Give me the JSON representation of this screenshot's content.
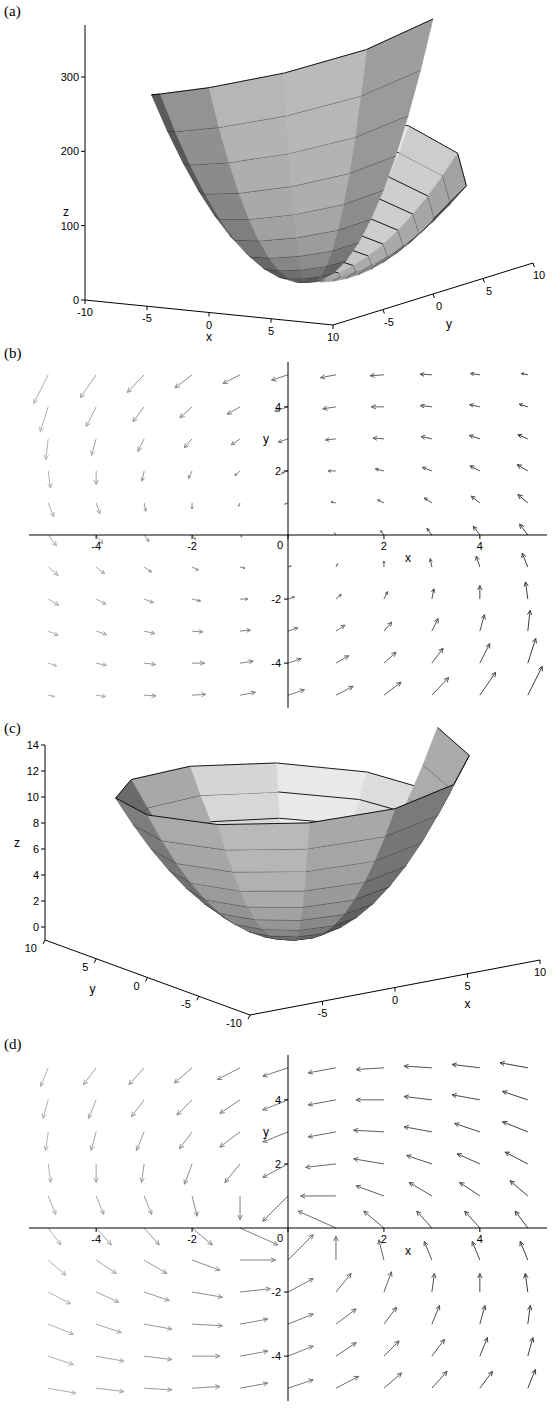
{
  "chart_data": [
    {
      "type": "surface",
      "title": "(a)",
      "x_label": "x",
      "y_label": "y",
      "z_label": "z",
      "xlim": [
        -10,
        10
      ],
      "ylim": [
        -10,
        10
      ],
      "zlim": [
        0,
        370
      ],
      "xticks": [
        -10,
        -5,
        0,
        5,
        10
      ],
      "yticks": [
        -5,
        0,
        5,
        10
      ],
      "zticks": [
        0,
        100,
        200,
        300
      ],
      "r": [
        0,
        1,
        2,
        3,
        4,
        5,
        6,
        7,
        8,
        9,
        10
      ],
      "theta": [
        0,
        30,
        60,
        90,
        120,
        150,
        180,
        210,
        240,
        270,
        300,
        330,
        360
      ],
      "z": [
        [
          0,
          0,
          0,
          0,
          0,
          0,
          0,
          0,
          0,
          0,
          0,
          0,
          0
        ],
        [
          1,
          1.2,
          1.5,
          1.7,
          1.9,
          2.1,
          2.4,
          2.6,
          2.8,
          3.0,
          3.3,
          3.5,
          3.7
        ],
        [
          4,
          4.9,
          5.8,
          6.7,
          7.6,
          8.5,
          9.4,
          10.3,
          11.2,
          12.1,
          13,
          13.9,
          14.8
        ],
        [
          9,
          11.0,
          13.1,
          15.1,
          17.1,
          19.1,
          21.2,
          23.2,
          25.2,
          27.2,
          29.3,
          31.3,
          33.3
        ],
        [
          16,
          19.6,
          23.2,
          26.8,
          30.4,
          34,
          37.6,
          41.2,
          44.8,
          48.4,
          52,
          55.6,
          59.2
        ],
        [
          25,
          30.6,
          36.3,
          41.9,
          47.5,
          53.1,
          58.8,
          64.4,
          70,
          75.6,
          81.3,
          86.9,
          92.5
        ],
        [
          36,
          44.1,
          52.2,
          60.3,
          68.4,
          76.5,
          84.6,
          92.7,
          100.8,
          108.9,
          117,
          125.1,
          133.2
        ],
        [
          49,
          60.0,
          71.1,
          82.1,
          93.1,
          104.1,
          115.2,
          126.2,
          137.2,
          148.2,
          159.3,
          170.3,
          181.3
        ],
        [
          64,
          78.4,
          92.8,
          107.2,
          121.6,
          136,
          150.4,
          164.8,
          179.2,
          193.6,
          208,
          222.4,
          236.8
        ],
        [
          81,
          99.2,
          117.5,
          135.7,
          153.9,
          172.1,
          190.4,
          208.6,
          226.8,
          245.0,
          263.3,
          281.5,
          299.7
        ],
        [
          100,
          122.5,
          145,
          167.5,
          190,
          212.5,
          235,
          257.5,
          280,
          302.5,
          325,
          347.5,
          370
        ]
      ]
    },
    {
      "type": "vector_field",
      "title": "(b)",
      "x_label": "x",
      "y_label": "y",
      "xlim": [
        -5.4,
        5.4
      ],
      "ylim": [
        -5.4,
        5.4
      ],
      "xticks": [
        -4,
        -2,
        0,
        2,
        4
      ],
      "yticks": [
        -4,
        -2,
        2,
        4
      ],
      "x": [
        -5,
        -4,
        -3,
        -2,
        -1,
        0,
        1,
        2,
        3,
        4,
        5
      ],
      "y": [
        -5,
        -4,
        -3,
        -2,
        -1,
        0,
        1,
        2,
        3,
        4,
        5
      ],
      "u": [
        [
          1.9,
          2.8,
          3.6,
          4.2,
          4.7,
          5,
          5.2,
          5.2,
          5.1,
          4.8,
          4.4
        ],
        [
          2.6,
          3.1,
          3.5,
          3.8,
          4.0,
          4,
          3.9,
          3.7,
          3.4,
          3.0,
          2.4
        ],
        [
          3.0,
          3.2,
          3.3,
          3.3,
          3.2,
          3,
          2.7,
          2.4,
          1.9,
          1.4,
          0.7
        ],
        [
          3.2,
          3.0,
          2.9,
          2.6,
          2.4,
          2,
          1.6,
          1.1,
          0.6,
          0,
          -0.7
        ],
        [
          3.0,
          2.6,
          2.3,
          1.9,
          1.5,
          1,
          0.5,
          0,
          -0.5,
          -1.1,
          -1.7
        ],
        [
          2.5,
          2,
          1.5,
          1,
          0.5,
          0,
          -0.5,
          -1,
          -1.5,
          -2,
          -2.5
        ],
        [
          1.7,
          1.1,
          0.5,
          0,
          -0.5,
          -1,
          -1.5,
          -1.9,
          -2.3,
          -2.6,
          -3.0
        ],
        [
          0.7,
          0,
          -0.6,
          -1.1,
          -1.6,
          -2,
          -2.4,
          -2.6,
          -2.9,
          -3.0,
          -3.2
        ],
        [
          -0.7,
          -1.4,
          -1.9,
          -2.4,
          -2.7,
          -3,
          -3.2,
          -3.3,
          -3.3,
          -3.2,
          -3.0
        ],
        [
          -2.4,
          -3.0,
          -3.4,
          -3.7,
          -3.9,
          -4,
          -4.0,
          -3.8,
          -3.5,
          -3.1,
          -2.6
        ],
        [
          -4.4,
          -4.8,
          -5.1,
          -5.2,
          -5.2,
          -5,
          -4.7,
          -4.2,
          -3.6,
          -2.8,
          -1.9
        ]
      ],
      "v": [
        [
          -0.6,
          -0.6,
          -0.3,
          0.4,
          1.3,
          2.5,
          4.0,
          5.9,
          8.0,
          10.4,
          13.1
        ],
        [
          -1.2,
          -1.0,
          -0.6,
          0,
          0.9,
          2,
          3.4,
          5.0,
          6.8,
          8.9,
          11.2
        ],
        [
          -1.9,
          -1.6,
          -1.1,
          -0.4,
          0.5,
          1.5,
          2.7,
          4.1,
          5.7,
          7.5,
          9.4
        ],
        [
          -2.8,
          -2.3,
          -1.6,
          -0.9,
          0,
          1,
          2.1,
          3.4,
          4.7,
          6.2,
          7.8
        ],
        [
          -3.8,
          -3.1,
          -2.3,
          -1.4,
          -0.5,
          0.5,
          1.5,
          2.7,
          3.8,
          5.0,
          6.3
        ],
        [
          -5,
          -4,
          -3,
          -2,
          -1,
          0,
          1,
          2,
          3,
          4,
          5
        ],
        [
          -6.3,
          -5.0,
          -3.8,
          -2.7,
          -1.5,
          -0.5,
          0.5,
          1.4,
          2.3,
          3.1,
          3.8
        ],
        [
          -7.8,
          -6.2,
          -4.7,
          -3.4,
          -2.1,
          -1,
          0,
          0.9,
          1.6,
          2.3,
          2.8
        ],
        [
          -9.4,
          -7.5,
          -5.7,
          -4.1,
          -2.7,
          -1.5,
          -0.5,
          0.4,
          1.1,
          1.6,
          1.9
        ],
        [
          -11.2,
          -8.9,
          -6.8,
          -5.0,
          -3.4,
          -2,
          -0.9,
          0,
          0.6,
          1.0,
          1.2
        ],
        [
          -13.1,
          -10.4,
          -8.0,
          -5.9,
          -4.0,
          -2.5,
          -1.3,
          -0.4,
          0.3,
          0.6,
          0.6
        ]
      ]
    },
    {
      "type": "surface",
      "title": "(c)",
      "x_label": "x",
      "y_label": "y",
      "z_label": "z",
      "xlim": [
        -10,
        10
      ],
      "ylim": [
        -10,
        10
      ],
      "zlim": [
        -1,
        14
      ],
      "xticks": [
        -5,
        0,
        5,
        10
      ],
      "yticks": [
        -10,
        -5,
        0,
        5,
        10
      ],
      "zticks": [
        0,
        2,
        4,
        6,
        8,
        10,
        12,
        14
      ],
      "r": [
        0,
        1,
        2,
        3,
        4,
        5,
        6,
        7,
        8,
        9,
        10
      ],
      "theta": [
        0,
        30,
        60,
        90,
        120,
        150,
        180,
        210,
        240,
        270,
        300,
        330,
        360
      ],
      "z": [
        [
          0,
          0,
          0,
          0,
          0,
          0,
          0,
          0,
          0,
          0,
          0,
          0,
          0
        ],
        [
          0.09,
          0.09,
          0.1,
          0.1,
          0.11,
          0.11,
          0.12,
          0.12,
          0.12,
          0.13,
          0.13,
          0.14,
          0.14
        ],
        [
          0.36,
          0.38,
          0.39,
          0.41,
          0.43,
          0.44,
          0.46,
          0.48,
          0.49,
          0.51,
          0.53,
          0.54,
          0.56
        ],
        [
          0.81,
          0.85,
          0.88,
          0.92,
          0.96,
          1.0,
          1.04,
          1.07,
          1.11,
          1.15,
          1.19,
          1.22,
          1.26
        ],
        [
          1.44,
          1.51,
          1.57,
          1.64,
          1.71,
          1.77,
          1.84,
          1.91,
          1.97,
          2.04,
          2.11,
          2.17,
          2.24
        ],
        [
          2.25,
          2.35,
          2.46,
          2.56,
          2.67,
          2.77,
          2.88,
          2.98,
          3.08,
          3.19,
          3.29,
          3.4,
          3.5
        ],
        [
          3.24,
          3.39,
          3.54,
          3.69,
          3.84,
          3.99,
          4.14,
          4.29,
          4.44,
          4.59,
          4.74,
          4.89,
          5.04
        ],
        [
          4.41,
          4.61,
          4.82,
          5.02,
          5.23,
          5.43,
          5.64,
          5.84,
          6.04,
          6.25,
          6.45,
          6.66,
          6.86
        ],
        [
          5.76,
          6.03,
          6.29,
          6.56,
          6.83,
          7.09,
          7.36,
          7.63,
          7.89,
          8.16,
          8.43,
          8.69,
          8.96
        ],
        [
          7.29,
          7.63,
          7.96,
          8.3,
          8.64,
          8.98,
          9.32,
          9.65,
          9.99,
          10.33,
          10.67,
          11.0,
          11.34
        ],
        [
          9,
          9.42,
          9.83,
          10.25,
          10.67,
          11.08,
          11.5,
          11.92,
          12.33,
          12.75,
          13.17,
          13.58,
          14
        ]
      ]
    },
    {
      "type": "vector_field",
      "title": "(d)",
      "x_label": "x",
      "y_label": "y",
      "xlim": [
        -5.4,
        5.4
      ],
      "ylim": [
        -5.4,
        5.4
      ],
      "xticks": [
        -4,
        -2,
        0,
        2,
        4
      ],
      "yticks": [
        -4,
        -2,
        2,
        4
      ],
      "x": [
        -5,
        -4,
        -3,
        -2,
        -1,
        0,
        1,
        2,
        3,
        4,
        5
      ],
      "y": [
        -5,
        -4,
        -3,
        -2,
        -1,
        0,
        1,
        2,
        3,
        4,
        5
      ],
      "u": [
        [
          1.1,
          1.1,
          1.1,
          1.1,
          1.1,
          1.0,
          0.9,
          0.7,
          0.6,
          0.5,
          0.3
        ],
        [
          1.0,
          1.1,
          1.1,
          1.1,
          1.1,
          1.0,
          0.8,
          0.6,
          0.5,
          0.3,
          0.2
        ],
        [
          1.0,
          1.0,
          1.1,
          1.2,
          1.1,
          1.0,
          0.8,
          0.5,
          0.3,
          0.2,
          0.1
        ],
        [
          0.9,
          0.9,
          1.0,
          1.2,
          1.2,
          1,
          0.6,
          0.3,
          0.1,
          0.0,
          -0.1
        ],
        [
          0.7,
          0.8,
          0.9,
          1.1,
          1.4,
          1,
          0,
          -0.2,
          -0.3,
          -0.3,
          -0.3
        ],
        [
          0.5,
          0.6,
          0.6,
          0.8,
          1.5,
          0,
          -1.5,
          -0.8,
          -0.6,
          -0.6,
          -0.5
        ],
        [
          0.3,
          0.3,
          0.3,
          0.2,
          0,
          -1,
          -1.4,
          -1.1,
          -0.9,
          -0.8,
          -0.7
        ],
        [
          0.1,
          0.0,
          -0.1,
          -0.3,
          -0.6,
          -1,
          -1.2,
          -1.2,
          -1.0,
          -0.9,
          -0.9
        ],
        [
          -0.1,
          -0.2,
          -0.3,
          -0.5,
          -0.8,
          -1.0,
          -1.1,
          -1.2,
          -1.1,
          -1.0,
          -1.0
        ],
        [
          -0.2,
          -0.3,
          -0.5,
          -0.6,
          -0.8,
          -1.0,
          -1.1,
          -1.1,
          -1.1,
          -1.1,
          -1.0
        ],
        [
          -0.3,
          -0.5,
          -0.6,
          -0.7,
          -0.9,
          -1.0,
          -1.1,
          -1.1,
          -1.1,
          -1.1,
          -1.1
        ]
      ],
      "v": [
        [
          -0.3,
          -0.2,
          -0.1,
          0.1,
          0.3,
          0.5,
          0.7,
          0.9,
          1.0,
          1.0,
          1.1
        ],
        [
          -0.5,
          -0.3,
          -0.2,
          0.0,
          0.3,
          0.6,
          0.8,
          0.9,
          1.0,
          1.1,
          1.1
        ],
        [
          -0.6,
          -0.5,
          -0.3,
          -0.1,
          0.3,
          0.6,
          0.9,
          1.0,
          1.1,
          1.1,
          1.1
        ],
        [
          -0.7,
          -0.6,
          -0.5,
          -0.3,
          0.2,
          0.8,
          1.1,
          1.2,
          1.1,
          1.1,
          1.1
        ],
        [
          -0.9,
          -0.8,
          -0.8,
          -0.6,
          0,
          1.5,
          1.4,
          1.2,
          1.1,
          1.1,
          1.1
        ],
        [
          -1,
          -1,
          -1,
          -1,
          -1,
          0,
          1,
          1,
          1,
          1,
          1
        ],
        [
          -1.1,
          -1.1,
          -1.1,
          -1.2,
          -1.4,
          -1.5,
          0,
          0.6,
          0.8,
          0.8,
          0.9
        ],
        [
          -1.1,
          -1.1,
          -1.1,
          -1.2,
          -1.1,
          -0.8,
          -0.2,
          0.3,
          0.5,
          0.6,
          0.7
        ],
        [
          -1.1,
          -1.1,
          -1.1,
          -1.0,
          -0.9,
          -0.6,
          -0.3,
          0.1,
          0.3,
          0.5,
          0.6
        ],
        [
          -1.1,
          -1.1,
          -1.0,
          -0.9,
          -0.8,
          -0.6,
          -0.3,
          0.0,
          0.2,
          0.3,
          0.5
        ],
        [
          -1.1,
          -1.0,
          -1.0,
          -0.9,
          -0.7,
          -0.5,
          -0.3,
          -0.1,
          0.1,
          0.2,
          0.3
        ]
      ]
    }
  ]
}
